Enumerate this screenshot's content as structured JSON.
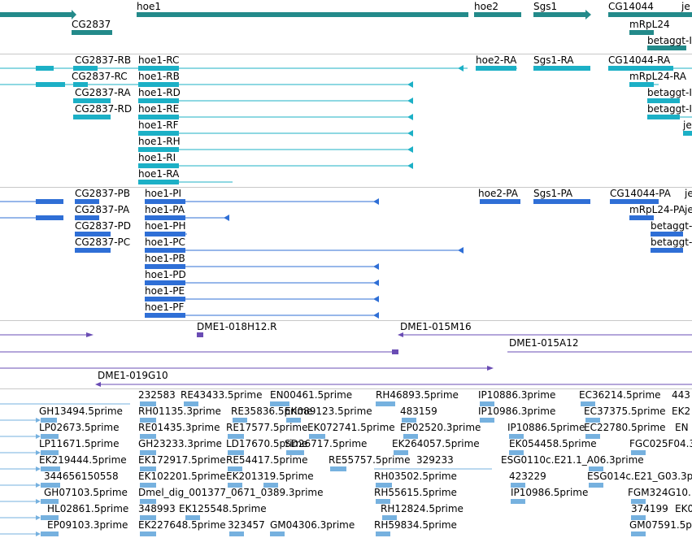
{
  "colors": {
    "background": "#ffffff",
    "gene_track": "#238a8a",
    "transcript_track": "#1cb0c6",
    "protein_track": "#2f6fd6",
    "clone_track": "#6a4cb4",
    "est_track": "#76b1df",
    "separator": "#c8c8c8"
  },
  "tracks": {
    "genes": [
      "hoe1",
      "hoe2",
      "Sgs1",
      "CG14044",
      "je",
      "CG2837",
      "mRpL24",
      "betaggt-I"
    ],
    "transcripts": [
      "CG2837-RB",
      "hoe1-RC",
      "hoe2-RA",
      "Sgs1-RA",
      "CG14044-RA",
      "CG2837-RC",
      "hoe1-RB",
      "mRpL24-RA",
      "CG2837-RA",
      "hoe1-RD",
      "betaggt-I",
      "CG2837-RD",
      "hoe1-RE",
      "betaggt-I",
      "hoe1-RF",
      "je",
      "hoe1-RH",
      "hoe1-RI",
      "hoe1-RA"
    ],
    "proteins": [
      "CG2837-PB",
      "hoe1-PI",
      "hoe2-PA",
      "Sgs1-PA",
      "CG14044-PA",
      "je",
      "CG2837-PA",
      "hoe1-PA",
      "mRpL24-PA",
      "je",
      "CG2837-PD",
      "hoe1-PH",
      "betaggt-",
      "CG2837-PC",
      "hoe1-PC",
      "betaggt-",
      "hoe1-PB",
      "hoe1-PD",
      "hoe1-PE",
      "hoe1-PF"
    ],
    "clones": [
      "DME1-018H12.R",
      "DME1-015M16",
      "DME1-015A12",
      "DME1-019G10"
    ],
    "ests": [
      "232583",
      "RE43433.5prime",
      "EN00461.5prime",
      "RH46893.5prime",
      "IP10886.3prime",
      "EC36214.5prime",
      "443",
      "GH13494.5prime",
      "RH01135.3prime",
      "RE35836.5prime",
      "EK089123.5prime",
      "483159",
      "IP10986.3prime",
      "EC37375.5prime",
      "EK2",
      "LP02673.5prime",
      "RE01435.3prime",
      "RE17577.5prime",
      "EK072741.5prime",
      "EP02520.3prime",
      "IP10886.5prime",
      "EC22780.5prime",
      "EN",
      "LP11671.5prime",
      "GH23233.3prime",
      "LD17670.5prime",
      "SD26717.5prime",
      "EK264057.5prime",
      "EK054458.5prime",
      "FGC025F04.3",
      "EK219444.5prime",
      "EK172917.5prime",
      "RE54417.5prime",
      "RE55757.5prime",
      "329233",
      "ESG0110c.E21.1_A06.3prime",
      "344656150558",
      "EK102201.5prime",
      "EK201319.5prime",
      "RH03502.5prime",
      "423229",
      "ESG014c.E21_G03.3p",
      "GH07103.5prime",
      "Dmel_dig_001377_0671_0389.3prime",
      "RH55615.5prime",
      "IP10986.5prime",
      "FGM324G10.",
      "HL02861.5prime",
      "348993",
      "EK125548.5prime",
      "RH12824.5prime",
      "374199",
      "EK0",
      "EP09103.3prime",
      "EK227648.5prime",
      "323457",
      "GM04306.3prime",
      "RH59834.5prime",
      "GM07591.5prime"
    ]
  }
}
